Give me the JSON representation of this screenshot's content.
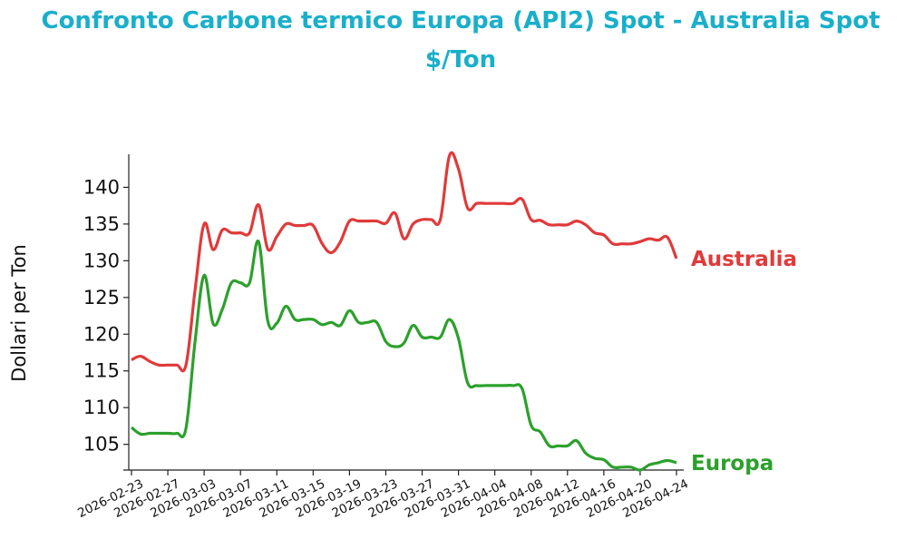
{
  "chart_data": {
    "type": "line",
    "title_line1": "Confronto Carbone termico Europa (API2) Spot - Australia Spot",
    "title_line2": "$/Ton",
    "xlabel": "",
    "ylabel": "Dollari per Ton",
    "ylim": [
      101.5,
      144.5
    ],
    "yticks": [
      105,
      110,
      115,
      120,
      125,
      130,
      135,
      140
    ],
    "xlim": [
      "2026-02-23",
      "2026-04-24"
    ],
    "xticks": [
      "2026-02-23",
      "2026-02-27",
      "2026-03-03",
      "2026-03-07",
      "2026-03-11",
      "2026-03-15",
      "2026-03-19",
      "2026-03-23",
      "2026-03-27",
      "2026-03-31",
      "2026-04-04",
      "2026-04-08",
      "2026-04-12",
      "2026-04-16",
      "2026-04-20",
      "2026-04-24"
    ],
    "grid": false,
    "legend": "labels at line ends",
    "series": [
      {
        "name": "Australia",
        "color": "#e03a3a",
        "points": [
          [
            "2026-02-23",
            116.5
          ],
          [
            "2026-02-24",
            117.0
          ],
          [
            "2026-02-25",
            116.3
          ],
          [
            "2026-02-26",
            115.8
          ],
          [
            "2026-02-27",
            115.8
          ],
          [
            "2026-02-28",
            115.8
          ],
          [
            "2026-03-01",
            115.8
          ],
          [
            "2026-03-02",
            126.0
          ],
          [
            "2026-03-03",
            135.0
          ],
          [
            "2026-03-04",
            131.5
          ],
          [
            "2026-03-05",
            134.2
          ],
          [
            "2026-03-06",
            133.8
          ],
          [
            "2026-03-07",
            133.8
          ],
          [
            "2026-03-08",
            133.8
          ],
          [
            "2026-03-09",
            137.6
          ],
          [
            "2026-03-10",
            131.6
          ],
          [
            "2026-03-11",
            133.3
          ],
          [
            "2026-03-12",
            135.0
          ],
          [
            "2026-03-13",
            134.8
          ],
          [
            "2026-03-14",
            134.8
          ],
          [
            "2026-03-15",
            134.8
          ],
          [
            "2026-03-16",
            132.3
          ],
          [
            "2026-03-17",
            131.1
          ],
          [
            "2026-03-18",
            132.6
          ],
          [
            "2026-03-19",
            135.4
          ],
          [
            "2026-03-20",
            135.4
          ],
          [
            "2026-03-21",
            135.4
          ],
          [
            "2026-03-22",
            135.4
          ],
          [
            "2026-03-23",
            135.1
          ],
          [
            "2026-03-24",
            136.5
          ],
          [
            "2026-03-25",
            133.0
          ],
          [
            "2026-03-26",
            135.0
          ],
          [
            "2026-03-27",
            135.6
          ],
          [
            "2026-03-28",
            135.6
          ],
          [
            "2026-03-29",
            135.6
          ],
          [
            "2026-03-30",
            144.3
          ],
          [
            "2026-03-31",
            142.5
          ],
          [
            "2026-04-01",
            137.2
          ],
          [
            "2026-04-02",
            137.8
          ],
          [
            "2026-04-03",
            137.8
          ],
          [
            "2026-04-04",
            137.8
          ],
          [
            "2026-04-05",
            137.8
          ],
          [
            "2026-04-06",
            137.8
          ],
          [
            "2026-04-07",
            138.4
          ],
          [
            "2026-04-08",
            135.6
          ],
          [
            "2026-04-09",
            135.5
          ],
          [
            "2026-04-10",
            134.9
          ],
          [
            "2026-04-11",
            134.9
          ],
          [
            "2026-04-12",
            134.9
          ],
          [
            "2026-04-13",
            135.4
          ],
          [
            "2026-04-14",
            134.9
          ],
          [
            "2026-04-15",
            133.8
          ],
          [
            "2026-04-16",
            133.5
          ],
          [
            "2026-04-17",
            132.3
          ],
          [
            "2026-04-18",
            132.3
          ],
          [
            "2026-04-19",
            132.3
          ],
          [
            "2026-04-20",
            132.6
          ],
          [
            "2026-04-21",
            133.0
          ],
          [
            "2026-04-22",
            132.8
          ],
          [
            "2026-04-23",
            133.2
          ],
          [
            "2026-04-24",
            130.3
          ]
        ]
      },
      {
        "name": "Europa",
        "color": "#2ca02c",
        "points": [
          [
            "2026-02-23",
            107.3
          ],
          [
            "2026-02-24",
            106.4
          ],
          [
            "2026-02-25",
            106.5
          ],
          [
            "2026-02-26",
            106.5
          ],
          [
            "2026-02-27",
            106.5
          ],
          [
            "2026-02-28",
            106.5
          ],
          [
            "2026-03-01",
            107.2
          ],
          [
            "2026-03-02",
            119.0
          ],
          [
            "2026-03-03",
            128.0
          ],
          [
            "2026-03-04",
            121.4
          ],
          [
            "2026-03-05",
            123.4
          ],
          [
            "2026-03-06",
            127.0
          ],
          [
            "2026-03-07",
            127.0
          ],
          [
            "2026-03-08",
            127.0
          ],
          [
            "2026-03-09",
            132.6
          ],
          [
            "2026-03-10",
            121.8
          ],
          [
            "2026-03-11",
            121.5
          ],
          [
            "2026-03-12",
            123.8
          ],
          [
            "2026-03-13",
            122.0
          ],
          [
            "2026-03-14",
            122.0
          ],
          [
            "2026-03-15",
            122.0
          ],
          [
            "2026-03-16",
            121.3
          ],
          [
            "2026-03-17",
            121.6
          ],
          [
            "2026-03-18",
            121.2
          ],
          [
            "2026-03-19",
            123.2
          ],
          [
            "2026-03-20",
            121.6
          ],
          [
            "2026-03-21",
            121.6
          ],
          [
            "2026-03-22",
            121.6
          ],
          [
            "2026-03-23",
            119.0
          ],
          [
            "2026-03-24",
            118.3
          ],
          [
            "2026-03-25",
            118.8
          ],
          [
            "2026-03-26",
            121.2
          ],
          [
            "2026-03-27",
            119.6
          ],
          [
            "2026-03-28",
            119.6
          ],
          [
            "2026-03-29",
            119.6
          ],
          [
            "2026-03-30",
            122.0
          ],
          [
            "2026-03-31",
            119.4
          ],
          [
            "2026-04-01",
            113.4
          ],
          [
            "2026-04-02",
            113.0
          ],
          [
            "2026-04-03",
            113.0
          ],
          [
            "2026-04-04",
            113.0
          ],
          [
            "2026-04-05",
            113.0
          ],
          [
            "2026-04-06",
            113.0
          ],
          [
            "2026-04-07",
            112.6
          ],
          [
            "2026-04-08",
            107.6
          ],
          [
            "2026-04-09",
            106.7
          ],
          [
            "2026-04-10",
            104.8
          ],
          [
            "2026-04-11",
            104.8
          ],
          [
            "2026-04-12",
            104.8
          ],
          [
            "2026-04-13",
            105.5
          ],
          [
            "2026-04-14",
            103.8
          ],
          [
            "2026-04-15",
            103.1
          ],
          [
            "2026-04-16",
            102.9
          ],
          [
            "2026-04-17",
            101.9
          ],
          [
            "2026-04-18",
            101.9
          ],
          [
            "2026-04-19",
            101.9
          ],
          [
            "2026-04-20",
            101.5
          ],
          [
            "2026-04-21",
            102.2
          ],
          [
            "2026-04-22",
            102.5
          ],
          [
            "2026-04-23",
            102.8
          ],
          [
            "2026-04-24",
            102.5
          ]
        ]
      }
    ]
  }
}
